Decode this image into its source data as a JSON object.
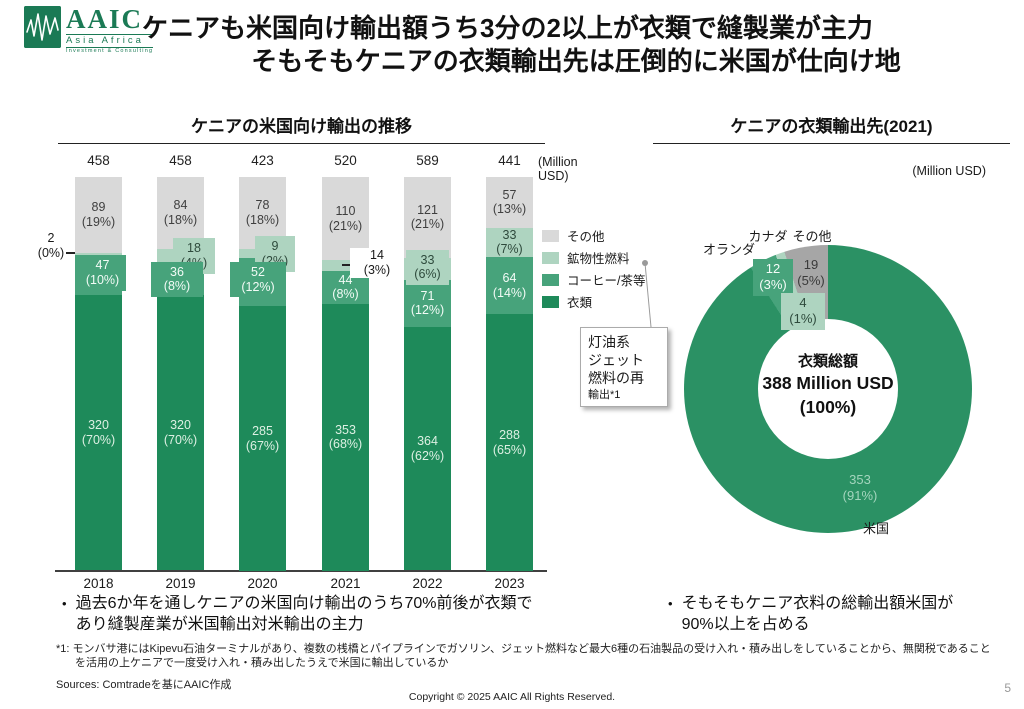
{
  "slide": {
    "logo": {
      "brand": "AAIC",
      "sub1": "Asia Africa",
      "sub2": "Investment & Consulting",
      "brand_color": "#1b7a55"
    },
    "title_line1": "ケニアも米国向け輸出額うち3分の2以上が衣類で縫製業が主力",
    "title_line2": "そもそもケニアの衣類輸出先は圧倒的に米国が仕向け地",
    "bullet_left": "過去6か年を通しケニアの米国向け輸出のうち70%前後が衣類であり縫製産業が米国輸出対米輸出の主力",
    "bullet_right": "そもそもケニア衣料の総輸出額米国が90%以上を占める",
    "footnote": "*1: モンバサ港にはKipevu石油ターミナルがあり、複数の桟橋とパイプラインでガソリン、ジェット燃料など最大6種の石油製品の受け入れ・積み出しをしていることから、無関税であることを活用の上ケニアで一度受け入れ・積み出したうえで米国に輸出しているか",
    "sources": "Sources: Comtradeを基にAAIC作成",
    "copyright": "Copyright © 2025 AAIC All Rights Reserved.",
    "page_number": "5"
  },
  "chart_data": [
    {
      "type": "bar",
      "subtype": "stacked-100",
      "title": "ケニアの米国向け輸出の推移",
      "unit_label": "(Million USD)",
      "categories": [
        "2018",
        "2019",
        "2020",
        "2021",
        "2022",
        "2023"
      ],
      "totals": [
        458,
        458,
        423,
        520,
        589,
        441
      ],
      "series": [
        {
          "name": "その他",
          "color": "#d9d9d9",
          "label_color": "#3f3f3f",
          "values": [
            89,
            84,
            78,
            110,
            121,
            57
          ],
          "pcts": [
            "19%",
            "18%",
            "18%",
            "21%",
            "21%",
            "13%"
          ]
        },
        {
          "name": "鉱物性燃料",
          "color": "#aed4c0",
          "label_color": "#2e4a3c",
          "values": [
            2,
            18,
            9,
            14,
            33,
            33
          ],
          "pcts": [
            "0%",
            "4%",
            "2%",
            "3%",
            "6%",
            "7%"
          ]
        },
        {
          "name": "コーヒー/茶等",
          "color": "#47a37b",
          "label_color": "#f2fbf6",
          "values": [
            47,
            36,
            52,
            44,
            71,
            64
          ],
          "pcts": [
            "10%",
            "8%",
            "12%",
            "8%",
            "12%",
            "14%"
          ]
        },
        {
          "name": "衣類",
          "color": "#1e8a5a",
          "label_color": "#ddf0e3",
          "values": [
            320,
            320,
            285,
            353,
            364,
            288
          ],
          "pcts": [
            "70%",
            "70%",
            "67%",
            "68%",
            "62%",
            "65%"
          ]
        }
      ],
      "legend_position": "right",
      "grid": false,
      "annotation_lines": [
        "灯油系",
        "ジェット",
        "燃料の再",
        "輸出*1"
      ],
      "annotation_target": "鉱物性燃料"
    },
    {
      "type": "pie",
      "subtype": "donut",
      "title": "ケニアの衣類輸出先(2021)",
      "unit_label": "(Million USD)",
      "total": 388,
      "center_label": [
        "衣類総額",
        "388 Million USD",
        "(100%)"
      ],
      "slices": [
        {
          "name": "米国",
          "value": 353,
          "pct": "91%",
          "color": "#2b9164",
          "label_color": "#a3d5bd"
        },
        {
          "name": "オランダ",
          "value": 12,
          "pct": "3%",
          "color": "#47a37b",
          "label_color": "#f4fbf7"
        },
        {
          "name": "カナダ",
          "value": 4,
          "pct": "1%",
          "color": "#aed4c0",
          "label_color": "#2e4a3c"
        },
        {
          "name": "その他",
          "value": 19,
          "pct": "5%",
          "color": "#a6a6a6",
          "label_color": "#3a3a3a"
        }
      ]
    }
  ]
}
